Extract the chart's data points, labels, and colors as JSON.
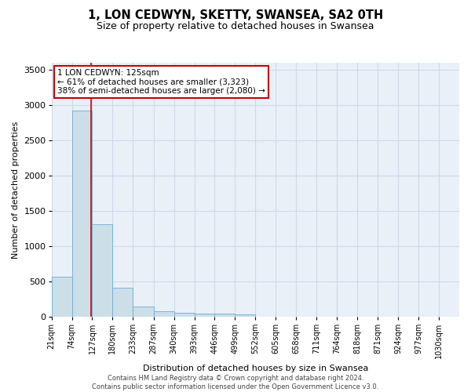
{
  "title": "1, LON CEDWYN, SKETTY, SWANSEA, SA2 0TH",
  "subtitle": "Size of property relative to detached houses in Swansea",
  "xlabel": "Distribution of detached houses by size in Swansea",
  "ylabel": "Number of detached properties",
  "footer_line1": "Contains HM Land Registry data © Crown copyright and database right 2024.",
  "footer_line2": "Contains public sector information licensed under the Open Government Licence v3.0.",
  "bar_color": "#ccdee8",
  "bar_edge_color": "#6aaed6",
  "grid_color": "#d0d8e8",
  "background_color": "#eaf0f8",
  "property_line_color": "#cc0000",
  "annotation_box_color": "#cc0000",
  "annotation_line1": "1 LON CEDWYN: 125sqm",
  "annotation_line2": "← 61% of detached houses are smaller (3,323)",
  "annotation_line3": "38% of semi-detached houses are larger (2,080) →",
  "property_sqm": 125,
  "bin_edges": [
    21,
    74,
    127,
    180,
    233,
    287,
    340,
    393,
    446,
    499,
    552,
    605,
    658,
    711,
    764,
    818,
    871,
    924,
    977,
    1030,
    1083
  ],
  "bin_counts": [
    570,
    2920,
    1310,
    415,
    155,
    80,
    60,
    55,
    50,
    40,
    0,
    0,
    0,
    0,
    0,
    0,
    0,
    0,
    0,
    0
  ],
  "ylim": [
    0,
    3600
  ],
  "yticks": [
    0,
    500,
    1000,
    1500,
    2000,
    2500,
    3000,
    3500
  ],
  "title_fontsize": 10.5,
  "subtitle_fontsize": 9,
  "axis_label_fontsize": 8,
  "tick_fontsize": 7,
  "annotation_fontsize": 7.5
}
